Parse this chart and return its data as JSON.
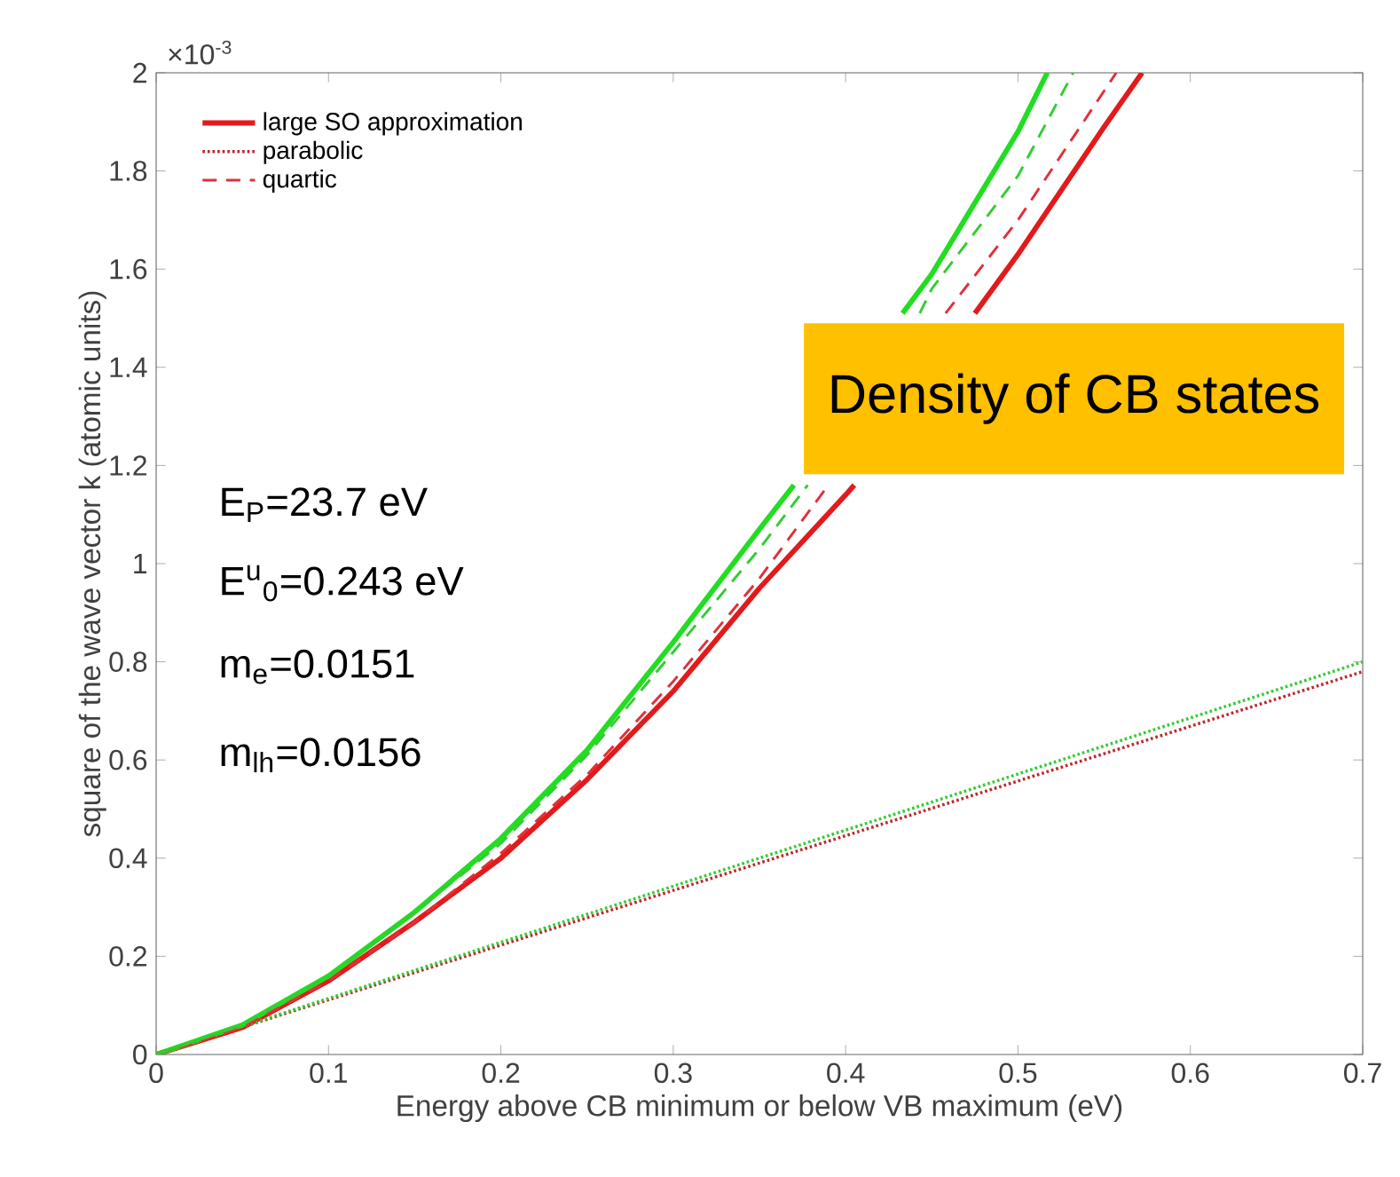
{
  "chart_data": {
    "type": "line",
    "xlabel": "Energy above CB minimum or below VB maximum (eV)",
    "ylabel": "square of the wave vector k (atomic units)",
    "xlim": [
      0,
      0.7
    ],
    "ylim": [
      0,
      2
    ],
    "xticks": [
      0,
      0.1,
      0.2,
      0.3,
      0.4,
      0.5,
      0.6,
      0.7
    ],
    "yticks": [
      0,
      0.2,
      0.4,
      0.6,
      0.8,
      1,
      1.2,
      1.4,
      1.6,
      1.8,
      2
    ],
    "legend": "top left",
    "marker": "none",
    "annotations": [
      "×10$^{-3}$",
      "E$_{P}$=23.7 eV",
      "E$^{u}$$_{0}$=0.243 eV",
      "m$_{e}$=0.0151",
      "m$_{lh}$=0.0156",
      "Density of CB states"
    ],
    "series": [
      {
        "name": "large SO approximation",
        "color": "#e31a1c",
        "line_style": "solid",
        "x": [
          0,
          0.05,
          0.1,
          0.15,
          0.2,
          0.25,
          0.3,
          0.35,
          0.4,
          0.405,
          0.45,
          0.475,
          0.5,
          0.55,
          0.572
        ],
        "values": [
          0,
          0.055,
          0.15,
          0.27,
          0.4,
          0.56,
          0.74,
          0.95,
          1.14,
          1.16,
          null,
          1.51,
          1.63,
          1.89,
          2.0
        ]
      },
      {
        "color": "#22dd22",
        "line_style": "solid",
        "x": [
          0,
          0.05,
          0.1,
          0.15,
          0.2,
          0.25,
          0.3,
          0.35,
          0.37,
          0.4,
          0.433,
          0.45,
          0.5,
          0.517
        ],
        "values": [
          0,
          0.06,
          0.16,
          0.29,
          0.44,
          0.62,
          0.84,
          1.07,
          1.16,
          null,
          1.51,
          1.59,
          1.88,
          2.0
        ]
      },
      {
        "name": "parabolic",
        "color": "#c0272d",
        "line_style": "dotted",
        "x": [
          0,
          0.35,
          0.7
        ],
        "values": [
          0,
          0.39,
          0.78
        ]
      },
      {
        "color": "#33cc33",
        "line_style": "dotted",
        "x": [
          0,
          0.35,
          0.7
        ],
        "values": [
          0,
          0.4,
          0.8
        ]
      },
      {
        "name": "quartic",
        "color": "#e0303a",
        "line_style": "dashed",
        "x": [
          0,
          0.05,
          0.1,
          0.15,
          0.2,
          0.25,
          0.3,
          0.35,
          0.39,
          0.4,
          0.45,
          0.458,
          0.5,
          0.557
        ],
        "values": [
          0,
          0.055,
          0.15,
          0.27,
          0.41,
          0.57,
          0.76,
          0.97,
          1.16,
          null,
          null,
          1.51,
          1.7,
          2.0
        ]
      },
      {
        "color": "#33cc33",
        "line_style": "dashed",
        "x": [
          0,
          0.05,
          0.1,
          0.15,
          0.2,
          0.25,
          0.3,
          0.35,
          0.378,
          0.4,
          0.443,
          0.45,
          0.5,
          0.532
        ],
        "values": [
          0,
          0.06,
          0.16,
          0.29,
          0.43,
          0.61,
          0.82,
          1.03,
          1.16,
          null,
          1.51,
          1.56,
          1.79,
          2.0
        ]
      }
    ]
  }
}
